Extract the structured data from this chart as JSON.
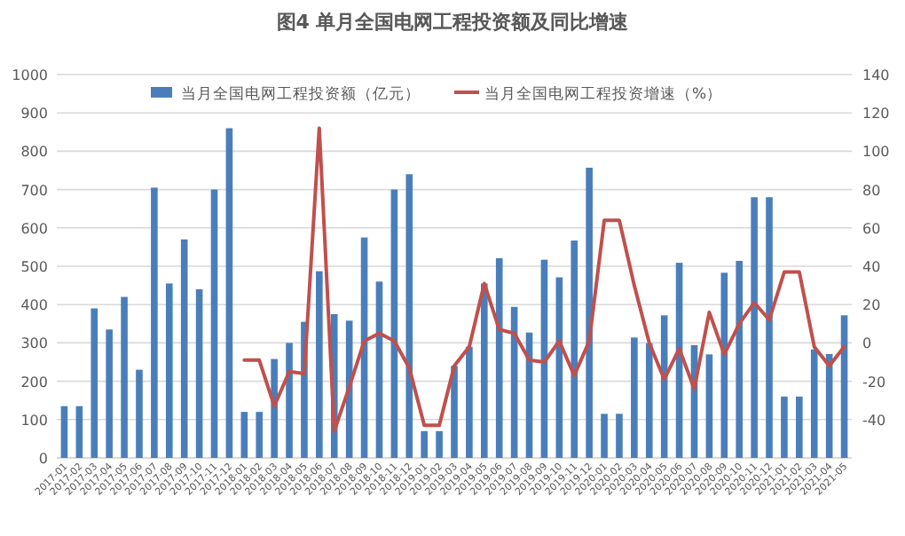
{
  "chart_data": {
    "type": "bar",
    "title": "图4 单月全国电网工程投资额及同比增速",
    "categories": [
      "2017-01",
      "2017-02",
      "2017-03",
      "2017-04",
      "2017-05",
      "2017-06",
      "2017-07",
      "2017-08",
      "2017-09",
      "2017-10",
      "2017-11",
      "2017-12",
      "2018-01",
      "2018-02",
      "2018-03",
      "2018-04",
      "2018-05",
      "2018-06",
      "2018-07",
      "2018-08",
      "2018-09",
      "2018-10",
      "2018-11",
      "2018-12",
      "2019-01",
      "2019-02",
      "2019-03",
      "2019-04",
      "2019-05",
      "2019-06",
      "2019-07",
      "2019-08",
      "2019-09",
      "2019-10",
      "2019-11",
      "2019-12",
      "2020-01",
      "2020-02",
      "2020-03",
      "2020-04",
      "2020-05",
      "2020-06",
      "2020-07",
      "2020-08",
      "2020-09",
      "2020-10",
      "2020-11",
      "2020-12",
      "2021-01",
      "2021-02",
      "2021-03",
      "2021-04",
      "2021-05"
    ],
    "series": [
      {
        "name": "当月全国电网工程投资额（亿元）",
        "color": "#4a7ebb",
        "values": [
          135,
          135,
          390,
          335,
          420,
          230,
          705,
          455,
          570,
          440,
          700,
          860,
          120,
          120,
          258,
          300,
          355,
          487,
          375,
          358,
          575,
          460,
          700,
          740,
          70,
          70,
          240,
          290,
          455,
          521,
          394,
          327,
          517,
          471,
          567,
          757,
          115,
          115,
          314,
          299,
          372,
          509,
          294,
          270,
          483,
          514,
          680,
          680,
          160,
          160,
          283,
          271,
          372
        ]
      },
      {
        "name": "当月全国电网工程投资增速（%）",
        "type": "line",
        "axis": "y2",
        "color": "#c0504d",
        "values": [
          null,
          null,
          null,
          null,
          null,
          null,
          null,
          null,
          null,
          null,
          null,
          null,
          -9,
          -9,
          -33,
          -15,
          -16,
          112,
          -46,
          -23,
          1,
          5,
          1,
          -13,
          -43,
          -43,
          -12,
          -2,
          31,
          7,
          5,
          -9,
          -10,
          1,
          -17,
          1,
          64,
          64,
          30,
          0,
          -19,
          -3,
          -24,
          16,
          -6,
          10,
          21,
          12,
          37,
          37,
          -2,
          -12,
          -2
        ]
      }
    ],
    "ylim": [
      0,
      1000
    ],
    "yticks": [
      0,
      100,
      200,
      300,
      400,
      500,
      600,
      700,
      800,
      900,
      1000
    ],
    "y2lim": [
      -60,
      140
    ],
    "y2ticks": [
      -40,
      -20,
      0,
      20,
      40,
      60,
      80,
      100,
      120,
      140
    ],
    "grid": "y",
    "legend": "top",
    "marker": "none",
    "line_style": "solid"
  }
}
